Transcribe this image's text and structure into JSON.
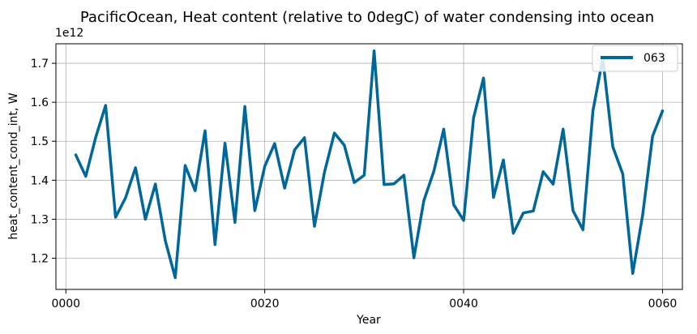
{
  "chart_data": {
    "type": "line",
    "title": "PacificOcean, Heat content (relative to 0degC) of water condensing into ocean",
    "xlabel": "Year",
    "ylabel": "heat_content_cond_int, W",
    "y_offset_label": "1e12",
    "xlim": [
      -1,
      62
    ],
    "ylim": [
      1.12,
      1.75
    ],
    "x_ticks": [
      {
        "value": 0,
        "label": "0000"
      },
      {
        "value": 20,
        "label": "0020"
      },
      {
        "value": 40,
        "label": "0040"
      },
      {
        "value": 60,
        "label": "0060"
      }
    ],
    "y_ticks": [
      {
        "value": 1.2,
        "label": "1.2"
      },
      {
        "value": 1.3,
        "label": "1.3"
      },
      {
        "value": 1.4,
        "label": "1.4"
      },
      {
        "value": 1.5,
        "label": "1.5"
      },
      {
        "value": 1.6,
        "label": "1.6"
      },
      {
        "value": 1.7,
        "label": "1.7"
      }
    ],
    "grid": true,
    "legend_position": "top-right",
    "series": [
      {
        "name": "063",
        "color": "#00679b",
        "x": [
          1,
          2,
          3,
          4,
          5,
          6,
          7,
          8,
          9,
          10,
          11,
          12,
          13,
          14,
          15,
          16,
          17,
          18,
          19,
          20,
          21,
          22,
          23,
          24,
          25,
          26,
          27,
          28,
          29,
          30,
          31,
          32,
          33,
          34,
          35,
          36,
          37,
          38,
          39,
          40,
          41,
          42,
          43,
          44,
          45,
          46,
          47,
          48,
          49,
          50,
          51,
          52,
          53,
          54,
          55,
          56,
          57,
          58,
          59,
          60
        ],
        "values": [
          1.465,
          1.41,
          1.51,
          1.592,
          1.305,
          1.355,
          1.432,
          1.3,
          1.39,
          1.245,
          1.15,
          1.438,
          1.373,
          1.527,
          1.235,
          1.495,
          1.292,
          1.589,
          1.322,
          1.436,
          1.494,
          1.38,
          1.478,
          1.509,
          1.282,
          1.42,
          1.521,
          1.49,
          1.394,
          1.413,
          1.732,
          1.389,
          1.391,
          1.413,
          1.201,
          1.348,
          1.423,
          1.531,
          1.337,
          1.297,
          1.56,
          1.662,
          1.356,
          1.452,
          1.264,
          1.316,
          1.321,
          1.422,
          1.39,
          1.531,
          1.322,
          1.273,
          1.578,
          1.713,
          1.486,
          1.416,
          1.161,
          1.31,
          1.513,
          1.578
        ]
      }
    ]
  }
}
